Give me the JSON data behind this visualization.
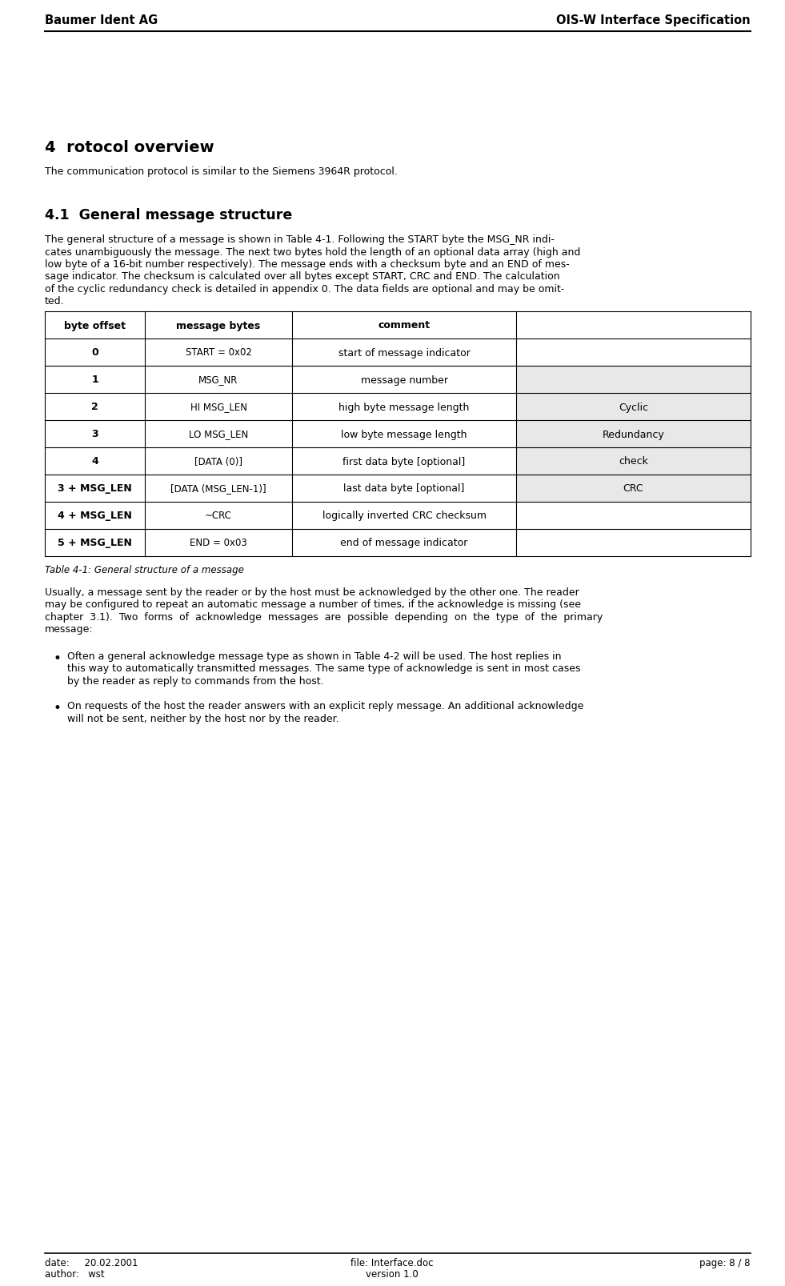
{
  "header_left": "Baumer Ident AG",
  "header_right": "OIS-W Interface Specification",
  "footer_left_line1": "date:     20.02.2001",
  "footer_left_line2": "author:   wst",
  "footer_center_line1": "file: Interface.doc",
  "footer_center_line2": "version 1.0",
  "footer_right": "page: 8 / 8",
  "section_title": "4  rotocol overview",
  "section_intro": "The communication protocol is similar to the Siemens 3964R protocol.",
  "subsection_title": "4.1  General message structure",
  "body_lines": [
    "The general structure of a message is shown in Table 4-1. Following the START byte the MSG_NR indi-",
    "cates unambiguously the message. The next two bytes hold the length of an optional data array (high and",
    "low byte of a 16-bit number respectively). The message ends with a checksum byte and an END of mes-",
    "sage indicator. The checksum is calculated over all bytes except START, CRC and END. The calculation",
    "of the cyclic redundancy check is detailed in appendix 0. The data fields are optional and may be omit-",
    "ted."
  ],
  "table_caption": "Table 4-1: General structure of a message",
  "table_headers": [
    "byte offset",
    "message bytes",
    "comment",
    ""
  ],
  "table_rows": [
    [
      "0",
      "START = 0x02",
      "start of message indicator",
      ""
    ],
    [
      "1",
      "MSG_NR",
      "message number",
      ""
    ],
    [
      "2",
      "HI MSG_LEN",
      "high byte message length",
      "Cyclic"
    ],
    [
      "3",
      "LO MSG_LEN",
      "low byte message length",
      "Redundancy"
    ],
    [
      "4",
      "[DATA (0)]",
      "first data byte [optional]",
      "check"
    ],
    [
      "3 + MSG_LEN",
      "[DATA (MSG_LEN-1)]",
      "last data byte [optional]",
      "CRC"
    ],
    [
      "4 + MSG_LEN",
      "~CRC",
      "logically inverted CRC checksum",
      ""
    ],
    [
      "5 + MSG_LEN",
      "END = 0x03",
      "end of message indicator",
      ""
    ]
  ],
  "gray_rows": [
    1,
    2,
    3,
    4,
    5
  ],
  "post_table_lines": [
    "Usually, a message sent by the reader or by the host must be acknowledged by the other one. The reader",
    "may be configured to repeat an automatic message a number of times, if the acknowledge is missing (see",
    "chapter  3.1).  Two  forms  of  acknowledge  messages  are  possible  depending  on  the  type  of  the  primary",
    "message:"
  ],
  "bullet1_lines": [
    "Often a general acknowledge message type as shown in Table 4-2 will be used. The host replies in",
    "this way to automatically transmitted messages. The same type of acknowledge is sent in most cases",
    "by the reader as reply to commands from the host."
  ],
  "bullet2_lines": [
    "On requests of the host the reader answers with an explicit reply message. An additional acknowledge",
    "will not be sent, neither by the host nor by the reader."
  ],
  "bg_color": "#ffffff",
  "text_color": "#000000",
  "gray_color": "#e8e8e8"
}
